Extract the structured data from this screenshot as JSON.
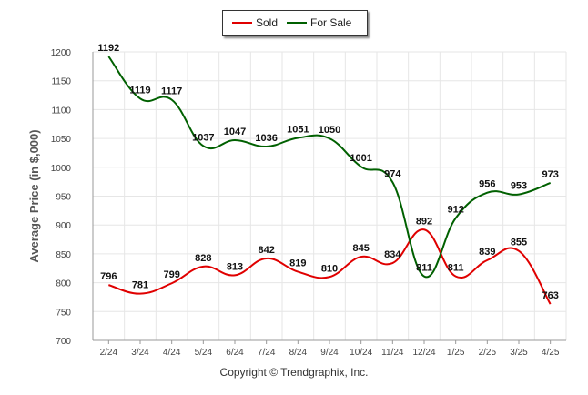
{
  "colors": {
    "sold": "#e00000",
    "for_sale": "#006000",
    "grid": "#e6e6e6",
    "axis": "#999999"
  },
  "legend": {
    "items": [
      "Sold",
      "For Sale"
    ]
  },
  "footer": {
    "copyright": "Copyright © Trendgraphix, Inc."
  },
  "chart_data": {
    "type": "line",
    "title": "",
    "xlabel": "",
    "ylabel": "Average Price (in $,000)",
    "ylim": [
      700,
      1200
    ],
    "yticks": [
      700,
      750,
      800,
      850,
      900,
      950,
      1000,
      1050,
      1100,
      1150,
      1200
    ],
    "grid": true,
    "legend_position": "top-center",
    "categories": [
      "2/24",
      "3/24",
      "4/24",
      "5/24",
      "6/24",
      "7/24",
      "8/24",
      "9/24",
      "10/24",
      "11/24",
      "12/24",
      "1/25",
      "2/25",
      "3/25",
      "4/25"
    ],
    "series": [
      {
        "name": "Sold",
        "values": [
          796,
          781,
          799,
          828,
          813,
          842,
          819,
          810,
          845,
          834,
          892,
          811,
          839,
          855,
          763
        ]
      },
      {
        "name": "For Sale",
        "values": [
          1192,
          1119,
          1117,
          1037,
          1047,
          1036,
          1051,
          1050,
          1001,
          974,
          811,
          912,
          956,
          953,
          973
        ]
      }
    ]
  }
}
